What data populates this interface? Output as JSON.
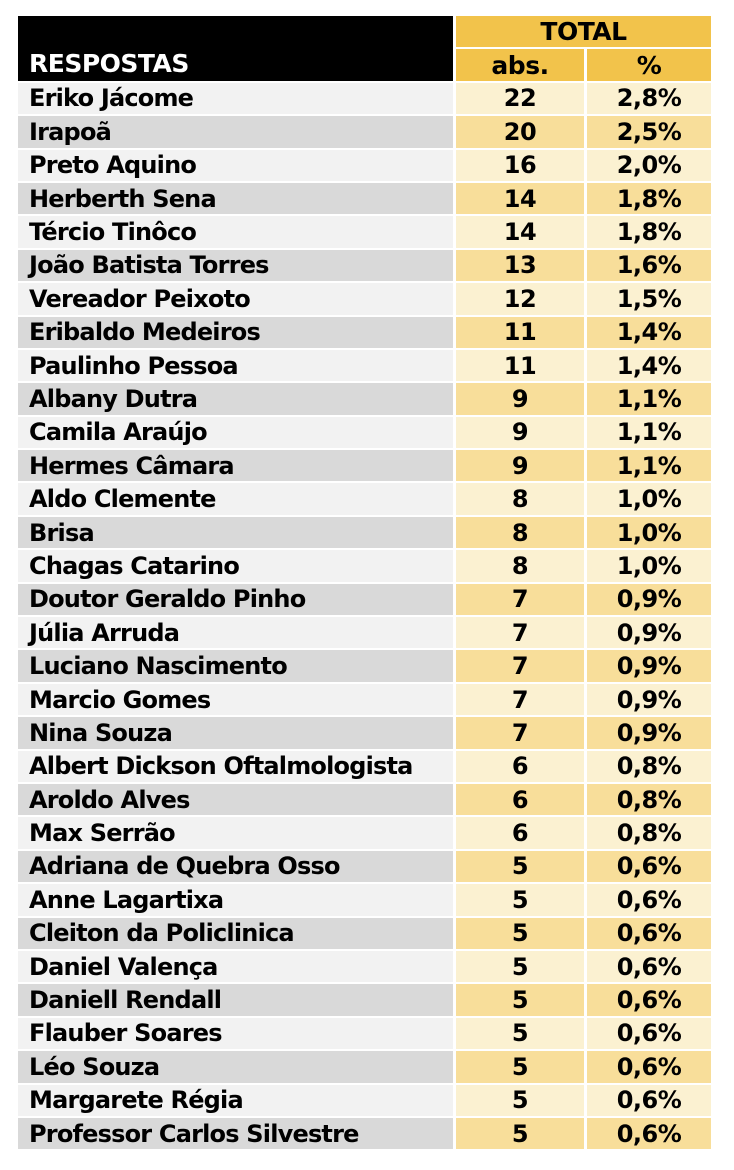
{
  "chart_data": {
    "type": "table",
    "title": "",
    "columns": [
      "RESPOSTAS",
      "abs.",
      "%"
    ],
    "header": {
      "respostas": "RESPOSTAS",
      "total": "TOTAL",
      "abs": "abs.",
      "pct": "%"
    },
    "rows": [
      {
        "name": "Eriko Jácome",
        "abs": "22",
        "pct": "2,8%"
      },
      {
        "name": "Irapoã",
        "abs": "20",
        "pct": "2,5%"
      },
      {
        "name": "Preto Aquino",
        "abs": "16",
        "pct": "2,0%"
      },
      {
        "name": "Herberth Sena",
        "abs": "14",
        "pct": "1,8%"
      },
      {
        "name": "Tércio Tinôco",
        "abs": "14",
        "pct": "1,8%"
      },
      {
        "name": "João Batista Torres",
        "abs": "13",
        "pct": "1,6%"
      },
      {
        "name": "Vereador Peixoto",
        "abs": "12",
        "pct": "1,5%"
      },
      {
        "name": "Eribaldo Medeiros",
        "abs": "11",
        "pct": "1,4%"
      },
      {
        "name": "Paulinho Pessoa",
        "abs": "11",
        "pct": "1,4%"
      },
      {
        "name": "Albany Dutra",
        "abs": "9",
        "pct": "1,1%"
      },
      {
        "name": "Camila Araújo",
        "abs": "9",
        "pct": "1,1%"
      },
      {
        "name": "Hermes Câmara",
        "abs": "9",
        "pct": "1,1%"
      },
      {
        "name": "Aldo Clemente",
        "abs": "8",
        "pct": "1,0%"
      },
      {
        "name": "Brisa",
        "abs": "8",
        "pct": "1,0%"
      },
      {
        "name": "Chagas Catarino",
        "abs": "8",
        "pct": "1,0%"
      },
      {
        "name": "Doutor Geraldo Pinho",
        "abs": "7",
        "pct": "0,9%"
      },
      {
        "name": "Júlia Arruda",
        "abs": "7",
        "pct": "0,9%"
      },
      {
        "name": "Luciano Nascimento",
        "abs": "7",
        "pct": "0,9%"
      },
      {
        "name": "Marcio Gomes",
        "abs": "7",
        "pct": "0,9%"
      },
      {
        "name": "Nina Souza",
        "abs": "7",
        "pct": "0,9%"
      },
      {
        "name": "Albert Dickson Oftalmologista",
        "abs": "6",
        "pct": "0,8%"
      },
      {
        "name": "Aroldo Alves",
        "abs": "6",
        "pct": "0,8%"
      },
      {
        "name": "Max Serrão",
        "abs": "6",
        "pct": "0,8%"
      },
      {
        "name": "Adriana de Quebra Osso",
        "abs": "5",
        "pct": "0,6%"
      },
      {
        "name": "Anne Lagartixa",
        "abs": "5",
        "pct": "0,6%"
      },
      {
        "name": "Cleiton da Policlinica",
        "abs": "5",
        "pct": "0,6%"
      },
      {
        "name": "Daniel Valença",
        "abs": "5",
        "pct": "0,6%"
      },
      {
        "name": "Daniell Rendall",
        "abs": "5",
        "pct": "0,6%"
      },
      {
        "name": "Flauber Soares",
        "abs": "5",
        "pct": "0,6%"
      },
      {
        "name": "Léo Souza",
        "abs": "5",
        "pct": "0,6%"
      },
      {
        "name": "Margarete Régia",
        "abs": "5",
        "pct": "0,6%"
      },
      {
        "name": "Professor Carlos Silvestre",
        "abs": "5",
        "pct": "0,6%"
      }
    ]
  },
  "colors": {
    "header_black": "#000000",
    "header_gold": "#F2C34B",
    "row_light_gray": "#F2F2F2",
    "row_dark_gray": "#D9D9D9",
    "value_light": "#FBF1D1",
    "value_gold": "#F8DE9A",
    "text_black": "#000000",
    "text_white": "#FFFFFF",
    "separator_white": "#FFFFFF"
  }
}
